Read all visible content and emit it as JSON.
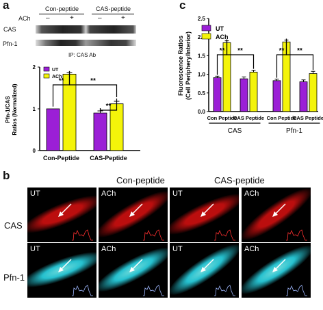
{
  "panel_a": {
    "letter": "a",
    "blot": {
      "header_left": "Con-peptide",
      "header_right": "CAS-peptide",
      "ach_label": "ACh",
      "ach_signs": [
        "–",
        "+",
        "–",
        "+"
      ],
      "row_labels": [
        "CAS",
        "Pfn-1"
      ],
      "ip_label": "IP: CAS Ab"
    },
    "chart_data": {
      "type": "bar",
      "categories": [
        "Con-Peptide",
        "CAS-Peptide"
      ],
      "series": [
        {
          "name": "UT",
          "values": [
            1.0,
            0.9
          ],
          "errors": [
            0.0,
            0.05
          ],
          "color": "#9b1fd6"
        },
        {
          "name": "ACh",
          "values": [
            1.83,
            1.12
          ],
          "errors": [
            0.04,
            0.06
          ],
          "color": "#f4f40a"
        }
      ],
      "ylabel_line1": "Pfn-1/CAS",
      "ylabel_line2": "Ratios (Normalized)",
      "ylim": [
        0,
        2
      ],
      "yticks": [
        "0",
        "1",
        "2"
      ],
      "significance": "**",
      "grid": false,
      "legend_placement": "top-left"
    }
  },
  "panel_b": {
    "letter": "b",
    "group_titles": [
      "Con-peptide",
      "CAS-peptide"
    ],
    "row_labels": [
      "CAS",
      "Pfn-1"
    ],
    "tiles": [
      {
        "label": "UT",
        "row": "CAS",
        "color": "#d01010"
      },
      {
        "label": "ACh",
        "row": "CAS",
        "color": "#d01010"
      },
      {
        "label": "UT",
        "row": "CAS",
        "color": "#d01010"
      },
      {
        "label": "ACh",
        "row": "CAS",
        "color": "#d01010"
      },
      {
        "label": "UT",
        "row": "Pfn-1",
        "color": "#2ad6e6"
      },
      {
        "label": "ACh",
        "row": "Pfn-1",
        "color": "#2ad6e6"
      },
      {
        "label": "UT",
        "row": "Pfn-1",
        "color": "#2ad6e6"
      },
      {
        "label": "ACh",
        "row": "Pfn-1",
        "color": "#2ad6e6"
      }
    ]
  },
  "panel_c": {
    "letter": "c",
    "chart_data": {
      "type": "bar",
      "categories": [
        "Con Peptide",
        "CAS Peptide",
        "Con Peptide",
        "CAS Peptide"
      ],
      "groups": [
        "CAS",
        "Pfn-1"
      ],
      "series": [
        {
          "name": "UT",
          "values": [
            0.91,
            0.88,
            0.83,
            0.8
          ],
          "errors": [
            0.04,
            0.05,
            0.04,
            0.05
          ],
          "color": "#9b1fd6"
        },
        {
          "name": "ACh",
          "values": [
            1.85,
            1.06,
            1.87,
            1.02
          ],
          "errors": [
            0.05,
            0.05,
            0.05,
            0.06
          ],
          "color": "#f4f40a"
        }
      ],
      "ylabel_line1": "Fluorescence Ratios",
      "ylabel_line2": "(Cell Periphery/Interior)",
      "ylim": [
        0,
        2.5
      ],
      "yticks": [
        "0.0",
        "0.5",
        "1.0",
        "1.5",
        "2.0",
        "2.5"
      ],
      "significance": "**",
      "grid": false,
      "legend_placement": "top-left"
    }
  }
}
